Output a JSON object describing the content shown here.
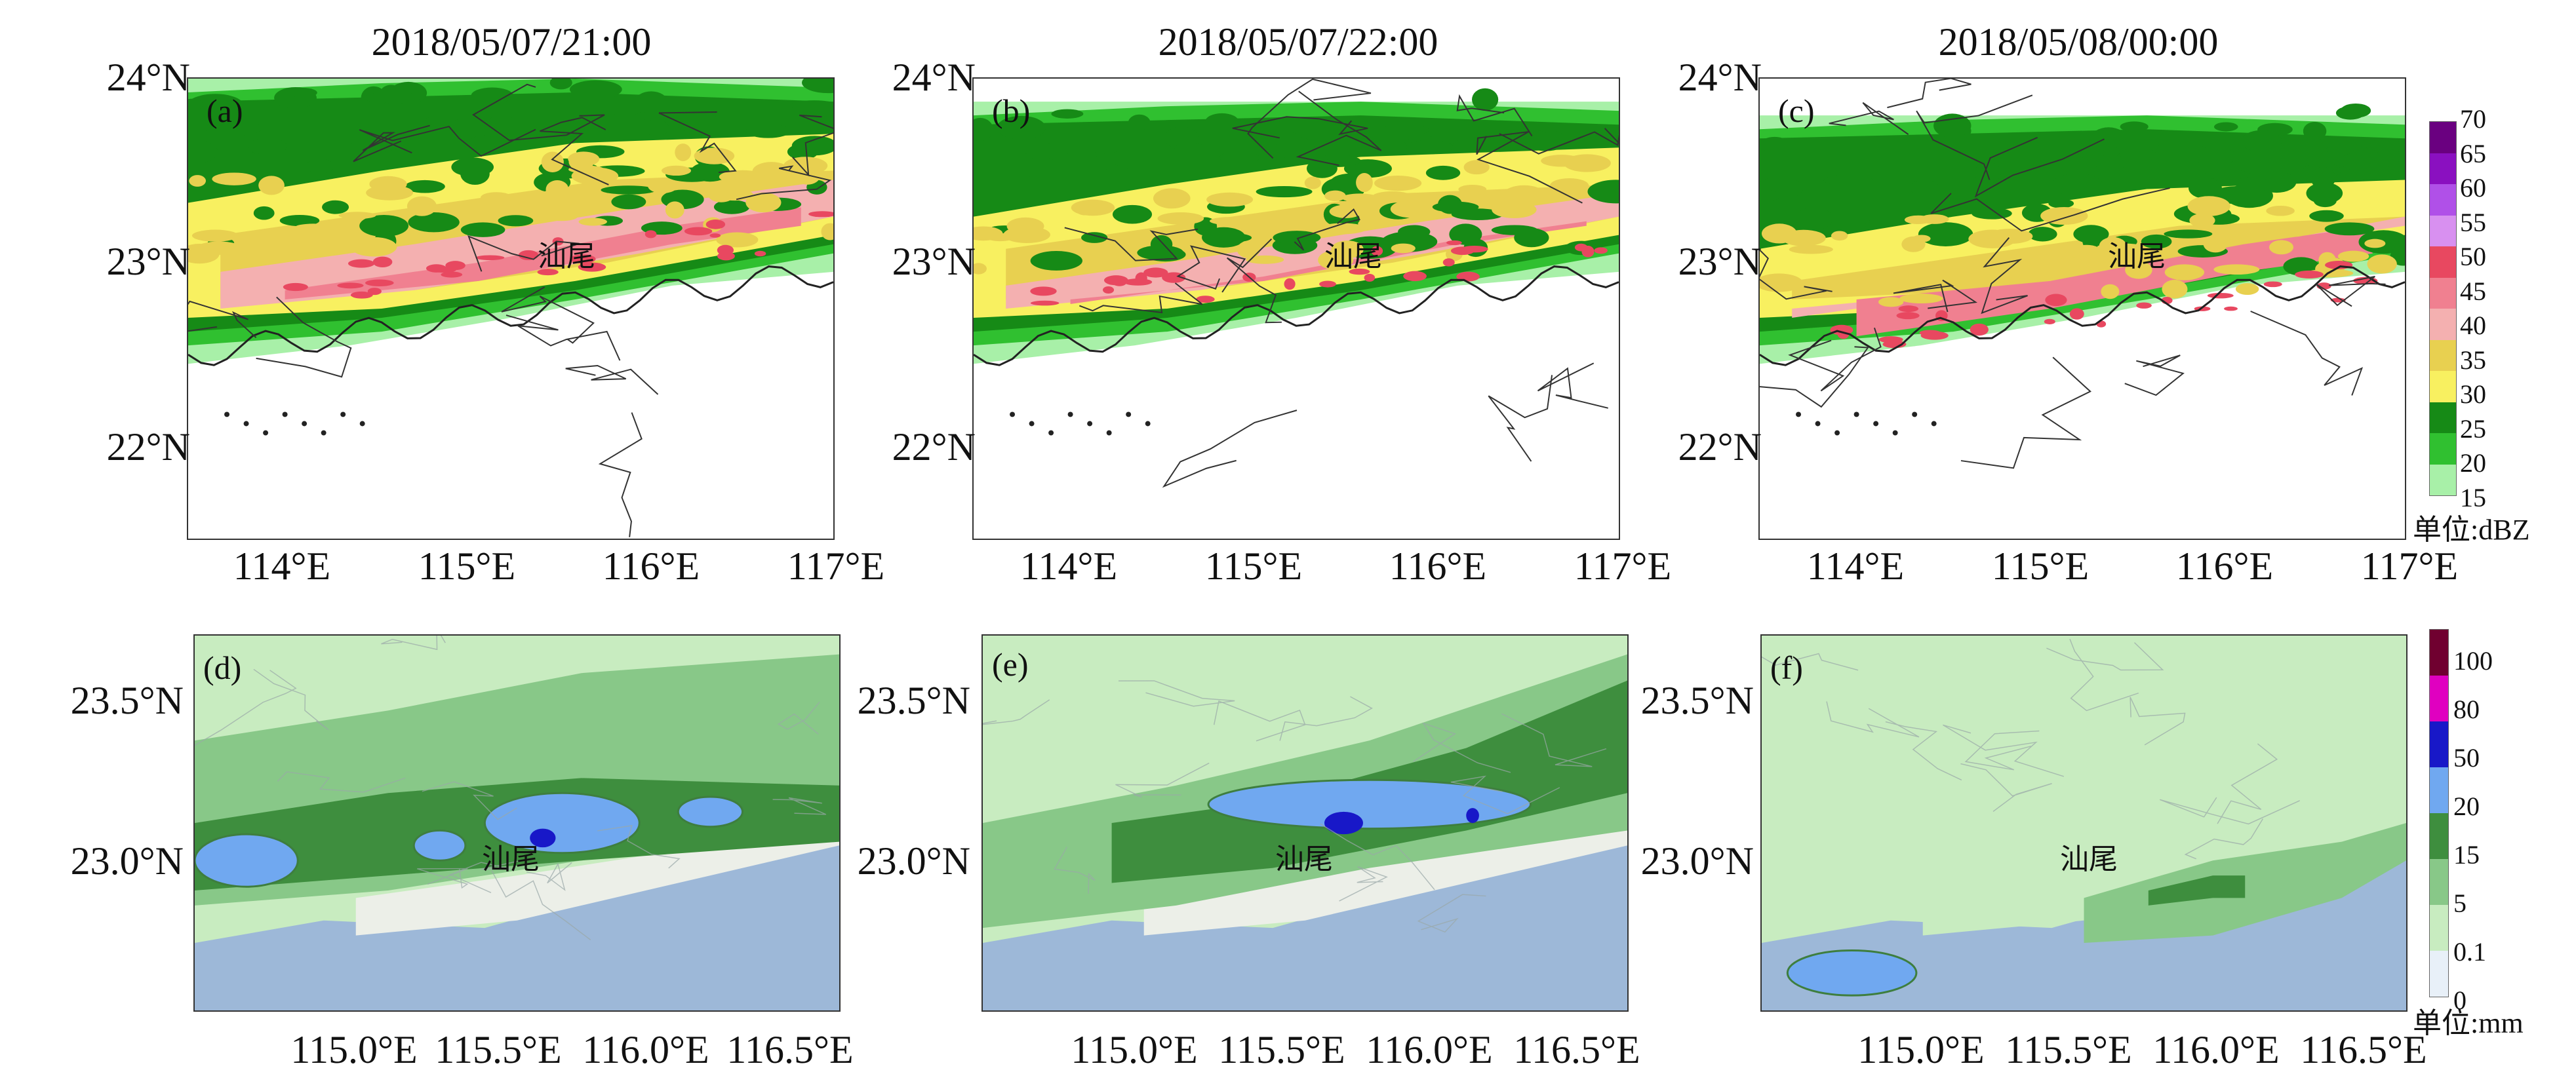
{
  "chart_data": [
    {
      "type": "heatmap",
      "panel": "(a)",
      "title": "2018/05/07/21:00",
      "variable": "radar reflectivity",
      "lat_ticks": [
        "24°N",
        "23°N",
        "22°N"
      ],
      "lon_ticks": [
        "114°E",
        "115°E",
        "116°E",
        "117°E"
      ],
      "lat_range": [
        21.5,
        24.0
      ],
      "lon_range": [
        113.5,
        117.0
      ],
      "city": "汕尾"
    },
    {
      "type": "heatmap",
      "panel": "(b)",
      "title": "2018/05/07/22:00",
      "variable": "radar reflectivity",
      "lat_ticks": [
        "24°N",
        "23°N",
        "22°N"
      ],
      "lon_ticks": [
        "114°E",
        "115°E",
        "116°E",
        "117°E"
      ],
      "lat_range": [
        21.5,
        24.0
      ],
      "lon_range": [
        113.5,
        117.0
      ],
      "city": "汕尾"
    },
    {
      "type": "heatmap",
      "panel": "(c)",
      "title": "2018/05/08/00:00",
      "variable": "radar reflectivity",
      "lat_ticks": [
        "24°N",
        "23°N",
        "22°N"
      ],
      "lon_ticks": [
        "114°E",
        "115°E",
        "116°E",
        "117°E"
      ],
      "lat_range": [
        21.5,
        24.0
      ],
      "lon_range": [
        113.5,
        117.0
      ],
      "city": "汕尾"
    },
    {
      "type": "heatmap",
      "panel": "(d)",
      "variable": "precipitation",
      "lat_ticks": [
        "23.5°N",
        "23.0°N"
      ],
      "lon_ticks": [
        "115.0°E",
        "115.5°E",
        "116.0°E",
        "116.5°E"
      ],
      "city": "汕尾"
    },
    {
      "type": "heatmap",
      "panel": "(e)",
      "variable": "precipitation",
      "lat_ticks": [
        "23.5°N",
        "23.0°N"
      ],
      "lon_ticks": [
        "115.0°E",
        "115.5°E",
        "116.0°E",
        "116.5°E"
      ],
      "city": "汕尾"
    },
    {
      "type": "heatmap",
      "panel": "(f)",
      "variable": "precipitation",
      "lat_ticks": [
        "23.5°N",
        "23.0°N"
      ],
      "lon_ticks": [
        "115.0°E",
        "115.5°E",
        "116.0°E",
        "116.5°E"
      ],
      "city": "汕尾"
    }
  ],
  "colorbar_reflectivity": {
    "unit": "单位:dBZ",
    "levels": [
      "70",
      "65",
      "60",
      "55",
      "50",
      "45",
      "40",
      "35",
      "30",
      "25",
      "20",
      "15"
    ],
    "colors": [
      "#6a0080",
      "#8a10c0",
      "#b050e8",
      "#d890f0",
      "#e84860",
      "#f08090",
      "#f4b0b0",
      "#e8d050",
      "#f8f060",
      "#168a16",
      "#30c030",
      "#a8f0a8"
    ]
  },
  "colorbar_precip": {
    "unit": "单位:mm",
    "levels": [
      "100",
      "80",
      "50",
      "20",
      "15",
      "5",
      "0.1",
      "0"
    ],
    "colors": [
      "#700030",
      "#e000c0",
      "#1818c8",
      "#70a8f0",
      "#3e8e3e",
      "#88c888",
      "#c8ecc0",
      "#e8f0f8"
    ]
  }
}
